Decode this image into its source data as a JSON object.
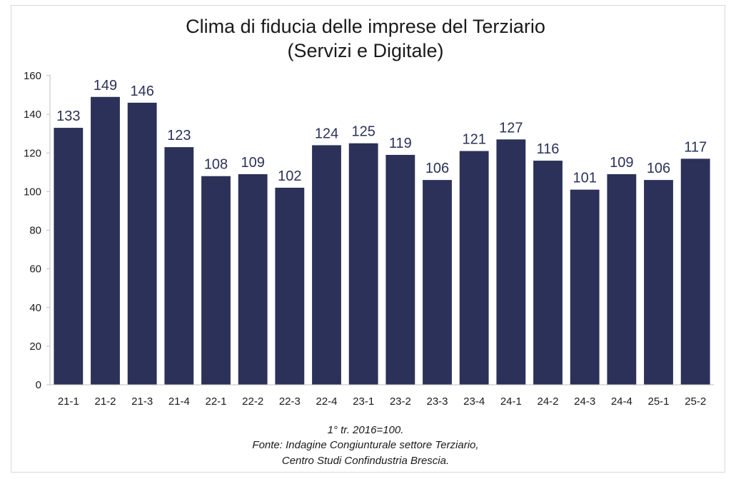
{
  "chart_data": {
    "type": "bar",
    "title": "Clima di fiducia delle imprese del Terziario",
    "subtitle": "(Servizi e Digitale)",
    "categories": [
      "21-1",
      "21-2",
      "21-3",
      "21-4",
      "22-1",
      "22-2",
      "22-3",
      "22-4",
      "23-1",
      "23-2",
      "23-3",
      "23-4",
      "24-1",
      "24-2",
      "24-3",
      "24-4",
      "25-1",
      "25-2"
    ],
    "values": [
      133,
      149,
      146,
      123,
      108,
      109,
      102,
      124,
      125,
      119,
      106,
      121,
      127,
      116,
      101,
      109,
      106,
      117
    ],
    "ylim": [
      0,
      160
    ],
    "yticks": [
      0,
      20,
      40,
      60,
      80,
      100,
      120,
      140,
      160
    ],
    "grid": false,
    "bar_color": "#2b3158",
    "data_labels": true
  },
  "footnotes": {
    "line1": "1° tr. 2016=100.",
    "line2": "Fonte: Indagine Congiunturale settore Terziario,",
    "line3": "Centro Studi Confindustria Brescia."
  }
}
